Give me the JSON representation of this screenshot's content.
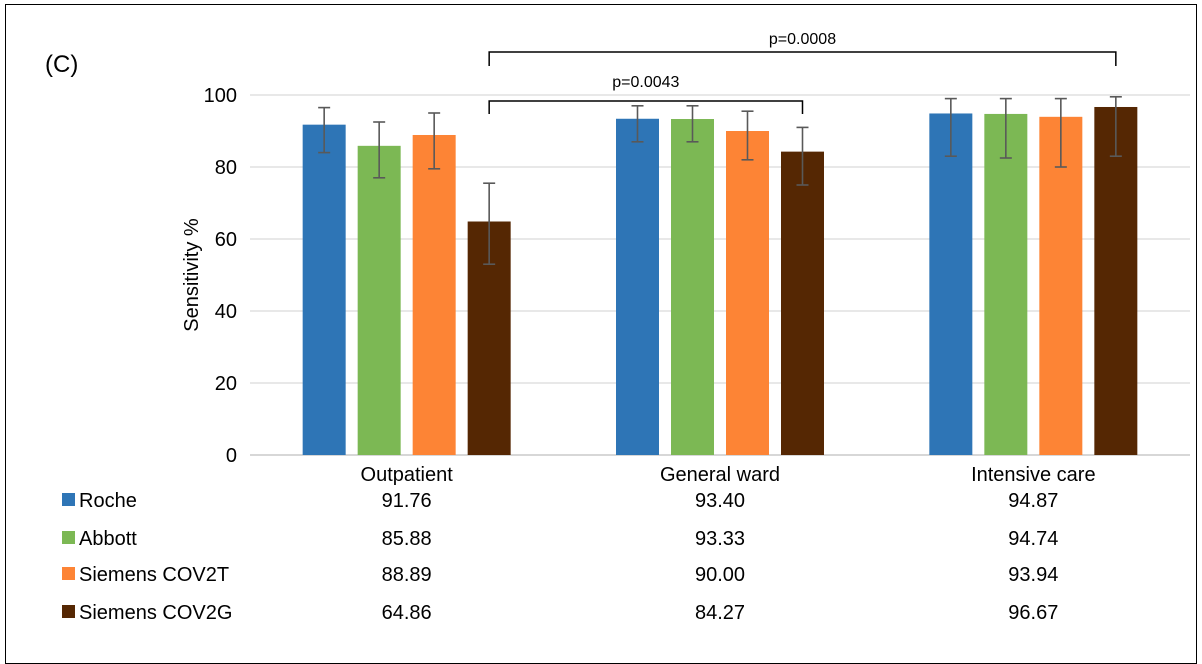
{
  "panel_label": "(C)",
  "colors": {
    "Roche": "#2e75b6",
    "Abbott": "#7cb854",
    "Siemens COV2T": "#fd8435",
    "Siemens COV2G": "#552703",
    "gridline": "#d9d9d9",
    "error_bar": "#595959"
  },
  "chart_data": {
    "type": "bar",
    "title": "",
    "xlabel": "",
    "ylabel": "Sensitivity %",
    "ylim": [
      0,
      100
    ],
    "yticks": [
      0,
      20,
      40,
      60,
      80,
      100
    ],
    "grid": true,
    "legend": "data-table-left",
    "categories": [
      "Outpatient",
      "General ward",
      "Intensive care"
    ],
    "series": [
      {
        "name": "Roche",
        "values": [
          91.76,
          93.4,
          94.87
        ],
        "err_low": [
          84,
          87,
          83
        ],
        "err_high": [
          96.5,
          97,
          99
        ]
      },
      {
        "name": "Abbott",
        "values": [
          85.88,
          93.33,
          94.74
        ],
        "err_low": [
          77,
          87,
          82.5
        ],
        "err_high": [
          92.5,
          97,
          99
        ]
      },
      {
        "name": "Siemens COV2T",
        "values": [
          88.89,
          90.0,
          93.94
        ],
        "err_low": [
          79.5,
          82,
          80
        ],
        "err_high": [
          95,
          95.5,
          99
        ]
      },
      {
        "name": "Siemens COV2G",
        "values": [
          64.86,
          84.27,
          96.67
        ],
        "err_low": [
          53,
          75,
          83
        ],
        "err_high": [
          75.5,
          91,
          99.5
        ]
      }
    ],
    "table_values": [
      [
        "91.76",
        "93.40",
        "94.87"
      ],
      [
        "85.88",
        "93.33",
        "94.74"
      ],
      [
        "88.89",
        "90.00",
        "93.94"
      ],
      [
        "64.86",
        "84.27",
        "96.67"
      ]
    ],
    "significance": [
      {
        "label": "p=0.0043",
        "from": "Outpatient: Siemens COV2G",
        "to": "General ward: Siemens COV2G"
      },
      {
        "label": "p=0.0008",
        "from": "Outpatient: Siemens COV2G",
        "to": "Intensive care: Siemens COV2G"
      }
    ]
  }
}
